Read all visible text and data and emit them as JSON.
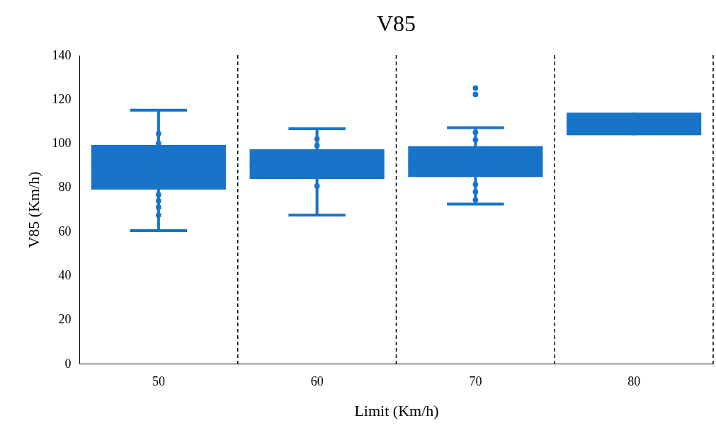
{
  "chart_data": {
    "type": "box",
    "title": "V85",
    "xlabel": "Limit (Km/h)",
    "ylabel": "V85 (Km/h)",
    "categories": [
      "50",
      "60",
      "70",
      "80"
    ],
    "ylim": [
      0,
      140
    ],
    "yticks": [
      0,
      20,
      40,
      60,
      80,
      100,
      120,
      140
    ],
    "grid": "x",
    "series": [
      {
        "color": "#1874c9",
        "boxes": [
          {
            "low": 60.4,
            "q1": 79,
            "median": 89.3,
            "q3": 99.2,
            "high": 115
          },
          {
            "low": 67.4,
            "q1": 83.8,
            "median": 89.3,
            "q3": 97.3,
            "high": 106.6
          },
          {
            "low": 72.4,
            "q1": 84.7,
            "median": 90.9,
            "q3": 98.7,
            "high": 107.1,
            "outliers": [
              122.2,
              125.1
            ]
          },
          {
            "low": 103.6,
            "q1": 103.6,
            "median": 108.8,
            "q3": 113.9,
            "high": 113.9
          }
        ]
      },
      {
        "type": "scatter",
        "color": "#1874c9",
        "marker": "circle",
        "x": [
          "50",
          "50",
          "50",
          "50",
          "50",
          "50",
          "60",
          "60",
          "60",
          "70",
          "70",
          "70",
          "70",
          "70"
        ],
        "values": [
          104.4,
          100,
          76.7,
          73.9,
          71,
          67.4,
          102,
          99,
          80.6,
          105,
          101.6,
          81.3,
          78,
          74.3
        ]
      }
    ]
  }
}
